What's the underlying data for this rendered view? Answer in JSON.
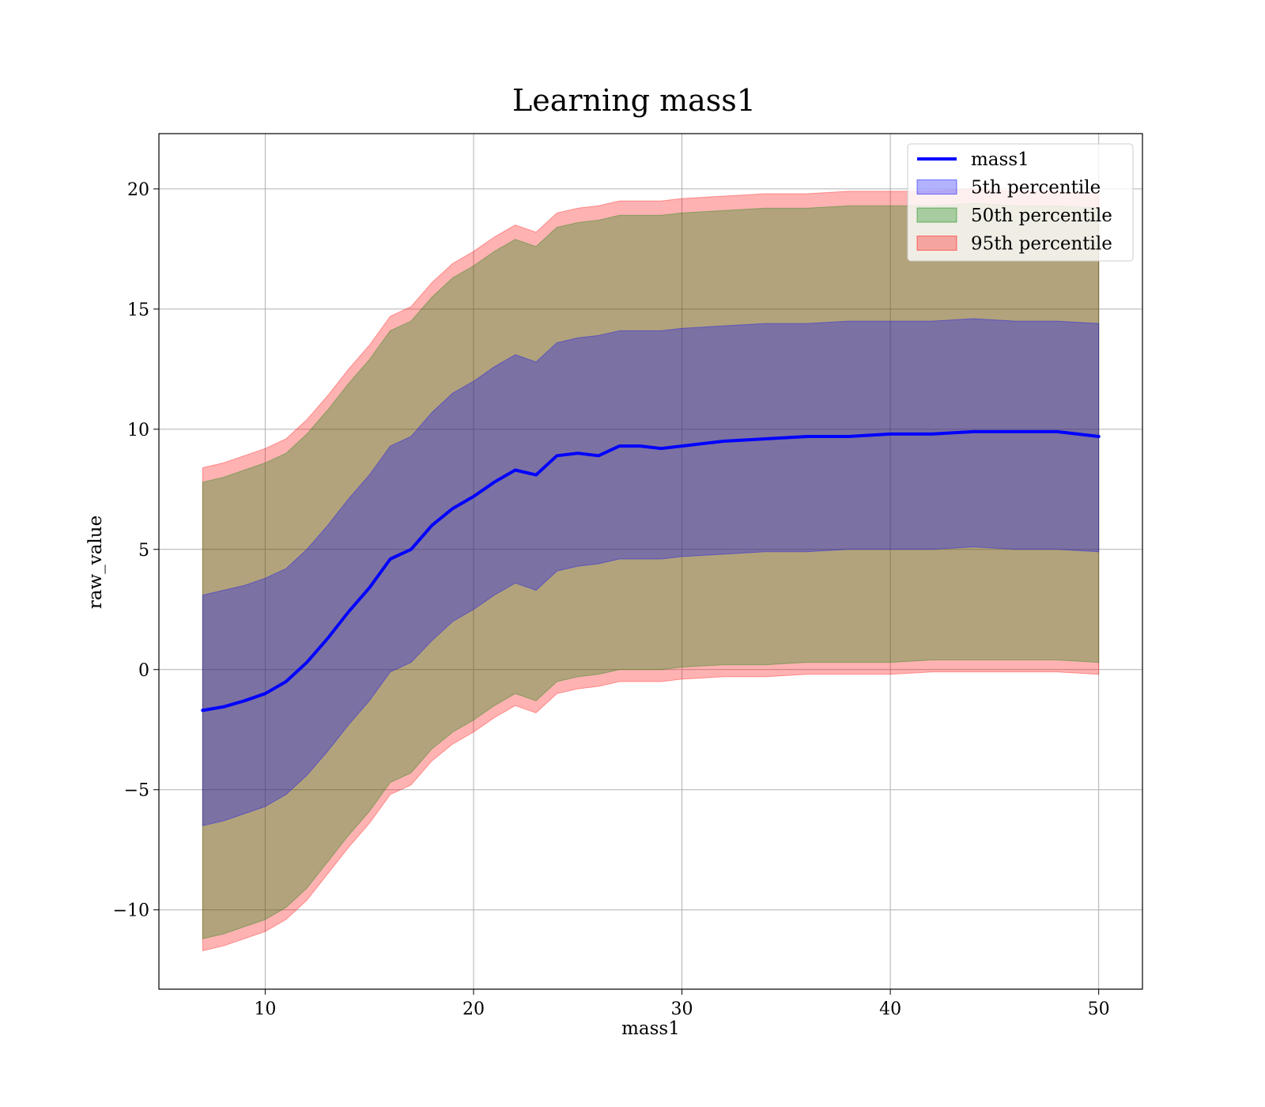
{
  "chart_data": {
    "type": "area",
    "title": "Learning mass1",
    "xlabel": "mass1",
    "ylabel": "raw_value",
    "xlim": [
      4.9,
      52.1
    ],
    "ylim": [
      -13.3,
      22.3
    ],
    "x_ticks": [
      10,
      20,
      30,
      40,
      50
    ],
    "y_ticks": [
      -10,
      -5,
      0,
      5,
      10,
      15,
      20
    ],
    "x_tick_labels": [
      "10",
      "20",
      "30",
      "40",
      "50"
    ],
    "y_tick_labels": [
      "−10",
      "−5",
      "0",
      "5",
      "10",
      "15",
      "20"
    ],
    "grid": true,
    "legend_position": "top-right",
    "legend": [
      {
        "label": "mass1",
        "kind": "line",
        "color": "#0000ff"
      },
      {
        "label": "5th percentile",
        "kind": "patch",
        "color": "#0000ff",
        "opacity": 0.3
      },
      {
        "label": "50th percentile",
        "kind": "patch",
        "color": "#008000",
        "opacity": 0.3
      },
      {
        "label": "95th percentile",
        "kind": "patch",
        "color": "#ff0000",
        "opacity": 0.3
      }
    ],
    "x": [
      7,
      8,
      9,
      10,
      11,
      12,
      13,
      14,
      15,
      16,
      17,
      18,
      19,
      20,
      21,
      22,
      23,
      24,
      25,
      26,
      27,
      28,
      29,
      30,
      32,
      34,
      36,
      38,
      40,
      42,
      44,
      46,
      48,
      50
    ],
    "series": [
      {
        "name": "mass1",
        "kind": "line",
        "color": "#0000ff",
        "values": [
          -1.7,
          -1.55,
          -1.3,
          -1.0,
          -0.5,
          0.3,
          1.3,
          2.4,
          3.4,
          4.6,
          5.0,
          6.0,
          6.7,
          7.2,
          7.8,
          8.3,
          8.1,
          8.9,
          9.0,
          8.9,
          9.3,
          9.3,
          9.2,
          9.3,
          9.5,
          9.6,
          9.7,
          9.7,
          9.8,
          9.8,
          9.9,
          9.9,
          9.9,
          9.7
        ]
      },
      {
        "name": "5th percentile",
        "kind": "band",
        "color": "#0000ff",
        "opacity": 0.3,
        "lower": [
          -6.5,
          -6.3,
          -6.0,
          -5.7,
          -5.2,
          -4.4,
          -3.4,
          -2.3,
          -1.3,
          -0.1,
          0.3,
          1.2,
          2.0,
          2.5,
          3.1,
          3.6,
          3.3,
          4.1,
          4.3,
          4.4,
          4.6,
          4.6,
          4.6,
          4.7,
          4.8,
          4.9,
          4.9,
          5.0,
          5.0,
          5.0,
          5.1,
          5.0,
          5.0,
          4.9
        ],
        "upper": [
          3.1,
          3.3,
          3.5,
          3.8,
          4.2,
          5.0,
          6.0,
          7.1,
          8.1,
          9.3,
          9.7,
          10.7,
          11.5,
          12.0,
          12.6,
          13.1,
          12.8,
          13.6,
          13.8,
          13.9,
          14.1,
          14.1,
          14.1,
          14.2,
          14.3,
          14.4,
          14.4,
          14.5,
          14.5,
          14.5,
          14.6,
          14.5,
          14.5,
          14.4
        ]
      },
      {
        "name": "50th percentile",
        "kind": "band",
        "color": "#008000",
        "opacity": 0.3,
        "lower": [
          -11.2,
          -11.0,
          -10.7,
          -10.4,
          -9.9,
          -9.1,
          -8.0,
          -6.9,
          -5.9,
          -4.7,
          -4.3,
          -3.3,
          -2.6,
          -2.1,
          -1.5,
          -1.0,
          -1.3,
          -0.5,
          -0.3,
          -0.2,
          0.0,
          0.0,
          0.0,
          0.1,
          0.2,
          0.2,
          0.3,
          0.3,
          0.3,
          0.4,
          0.4,
          0.4,
          0.4,
          0.3
        ],
        "upper": [
          7.8,
          8.0,
          8.3,
          8.6,
          9.0,
          9.8,
          10.8,
          11.9,
          12.9,
          14.1,
          14.5,
          15.5,
          16.3,
          16.8,
          17.4,
          17.9,
          17.6,
          18.4,
          18.6,
          18.7,
          18.9,
          18.9,
          18.9,
          19.0,
          19.1,
          19.2,
          19.2,
          19.3,
          19.3,
          19.3,
          19.4,
          19.3,
          19.3,
          19.2
        ]
      },
      {
        "name": "95th percentile",
        "kind": "band",
        "color": "#ff0000",
        "opacity": 0.3,
        "lower": [
          -11.7,
          -11.5,
          -11.2,
          -10.9,
          -10.4,
          -9.6,
          -8.5,
          -7.4,
          -6.4,
          -5.2,
          -4.8,
          -3.8,
          -3.1,
          -2.6,
          -2.0,
          -1.5,
          -1.8,
          -1.0,
          -0.8,
          -0.7,
          -0.5,
          -0.5,
          -0.5,
          -0.4,
          -0.3,
          -0.3,
          -0.2,
          -0.2,
          -0.2,
          -0.1,
          -0.1,
          -0.1,
          -0.1,
          -0.2
        ],
        "upper": [
          8.4,
          8.6,
          8.9,
          9.2,
          9.6,
          10.4,
          11.4,
          12.5,
          13.5,
          14.7,
          15.1,
          16.1,
          16.9,
          17.4,
          18.0,
          18.5,
          18.2,
          19.0,
          19.2,
          19.3,
          19.5,
          19.5,
          19.5,
          19.6,
          19.7,
          19.8,
          19.8,
          19.9,
          19.9,
          19.9,
          20.0,
          19.9,
          19.9,
          19.8
        ]
      }
    ]
  }
}
